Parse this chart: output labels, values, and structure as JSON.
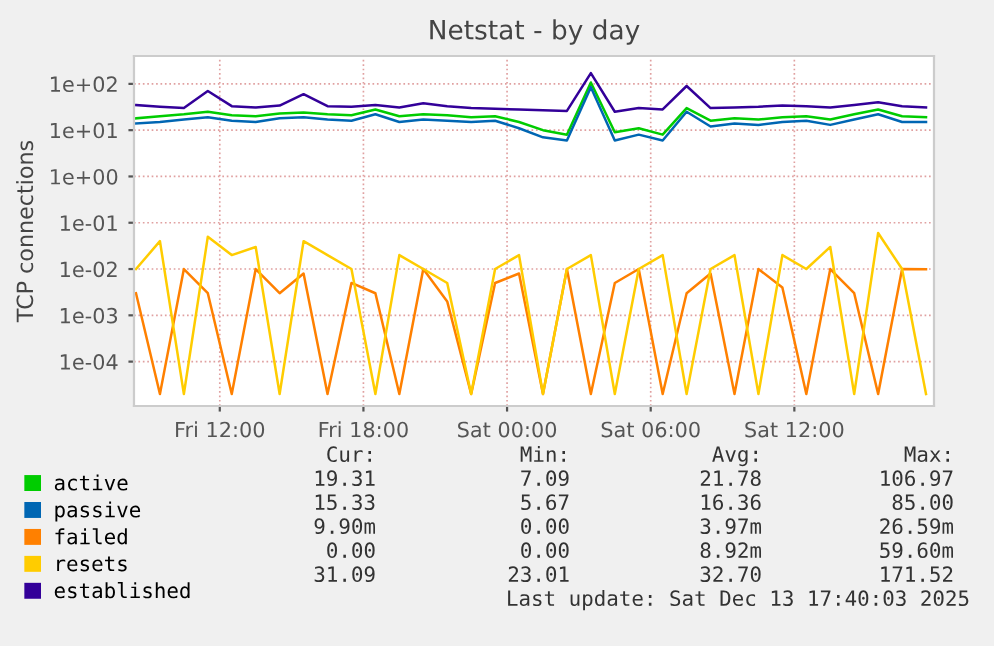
{
  "chart_data": {
    "type": "line",
    "title": "Netstat - by day",
    "ylabel": "TCP connections",
    "x": [
      "2025-12-12T08:30",
      "2025-12-12T09:30",
      "2025-12-12T10:30",
      "2025-12-12T11:30",
      "2025-12-12T12:30",
      "2025-12-12T13:30",
      "2025-12-12T14:30",
      "2025-12-12T15:30",
      "2025-12-12T16:30",
      "2025-12-12T17:30",
      "2025-12-12T18:30",
      "2025-12-12T19:30",
      "2025-12-12T20:30",
      "2025-12-12T21:30",
      "2025-12-12T22:30",
      "2025-12-12T23:30",
      "2025-12-13T00:30",
      "2025-12-13T01:30",
      "2025-12-13T02:30",
      "2025-12-13T03:30",
      "2025-12-13T04:30",
      "2025-12-13T05:30",
      "2025-12-13T06:30",
      "2025-12-13T07:30",
      "2025-12-13T08:30",
      "2025-12-13T09:30",
      "2025-12-13T10:30",
      "2025-12-13T11:30",
      "2025-12-13T12:30",
      "2025-12-13T13:30",
      "2025-12-13T14:30",
      "2025-12-13T15:30",
      "2025-12-13T16:30",
      "2025-12-13T17:30"
    ],
    "series": [
      {
        "name": "active",
        "color": "#00cc00",
        "values": [
          18,
          20,
          22,
          25,
          21,
          20,
          23,
          24,
          22,
          21,
          28,
          20,
          22,
          21,
          19,
          20,
          15,
          10,
          8,
          107,
          9,
          11,
          8,
          30,
          16,
          18,
          17,
          19,
          20,
          17,
          22,
          28,
          20,
          19
        ]
      },
      {
        "name": "passive",
        "color": "#0066b3",
        "values": [
          14,
          15,
          17,
          19,
          16,
          15,
          18,
          19,
          17,
          16,
          22,
          15,
          17,
          16,
          15,
          16,
          11,
          7,
          6,
          85,
          6,
          8,
          6,
          25,
          12,
          14,
          13,
          15,
          16,
          13,
          17,
          22,
          15,
          15
        ]
      },
      {
        "name": "failed",
        "color": "#ff8000",
        "values": [
          0.003,
          2e-05,
          0.01,
          0.003,
          2e-05,
          0.01,
          0.003,
          0.008,
          2e-05,
          0.005,
          0.003,
          2e-05,
          0.01,
          0.002,
          2e-05,
          0.005,
          0.008,
          2e-05,
          0.01,
          2e-05,
          0.005,
          0.01,
          2e-05,
          0.003,
          0.008,
          2e-05,
          0.01,
          0.004,
          2e-05,
          0.01,
          0.003,
          2e-05,
          0.01,
          0.0099
        ]
      },
      {
        "name": "resets",
        "color": "#ffcc00",
        "values": [
          0.01,
          0.04,
          2e-05,
          0.05,
          0.02,
          0.03,
          2e-05,
          0.04,
          0.02,
          0.01,
          2e-05,
          0.02,
          0.01,
          0.005,
          2e-05,
          0.01,
          0.02,
          2e-05,
          0.01,
          0.02,
          2e-05,
          0.01,
          0.02,
          2e-05,
          0.01,
          0.02,
          2e-05,
          0.02,
          0.01,
          0.03,
          2e-05,
          0.06,
          0.01,
          2e-05
        ]
      },
      {
        "name": "established",
        "color": "#330099",
        "values": [
          35,
          32,
          30,
          70,
          33,
          31,
          34,
          60,
          33,
          32,
          35,
          31,
          38,
          33,
          30,
          29,
          28,
          27,
          26,
          171,
          25,
          30,
          28,
          90,
          30,
          31,
          32,
          34,
          33,
          31,
          35,
          40,
          33,
          31
        ]
      }
    ],
    "log": "y",
    "ylim": [
      1.1e-05,
      400
    ],
    "yticks": [
      {
        "value": 0.0001,
        "label": "1e-04"
      },
      {
        "value": 0.001,
        "label": "1e-03"
      },
      {
        "value": 0.01,
        "label": "1e-02"
      },
      {
        "value": 0.1,
        "label": "1e-01"
      },
      {
        "value": 1,
        "label": "1e+00"
      },
      {
        "value": 10,
        "label": "1e+01"
      },
      {
        "value": 100,
        "label": "1e+02"
      }
    ],
    "xlim": [
      "2025-12-12T08:25",
      "2025-12-13T17:50"
    ],
    "xticks": [
      {
        "value": "2025-12-12T12:00",
        "label": "Fri 12:00"
      },
      {
        "value": "2025-12-12T18:00",
        "label": "Fri 18:00"
      },
      {
        "value": "2025-12-13T00:00",
        "label": "Sat 00:00"
      },
      {
        "value": "2025-12-13T06:00",
        "label": "Sat 06:00"
      },
      {
        "value": "2025-12-13T12:00",
        "label": "Sat 12:00"
      }
    ],
    "grid": true,
    "legend": "bottom left",
    "annotations": [
      "Cur:",
      "Min:",
      "Avg:",
      "Max:",
      "19.31",
      "7.09",
      "21.78",
      "106.97",
      "15.33",
      "5.67",
      "16.36",
      "85.00",
      "9.90m",
      "0.00",
      "3.97m",
      "26.59m",
      "0.00",
      "0.00",
      "8.92m",
      "59.60m",
      "31.09",
      "23.01",
      "32.70",
      "171.52",
      "Last update: Sat Dec 13 17:40:03 2025"
    ]
  }
}
